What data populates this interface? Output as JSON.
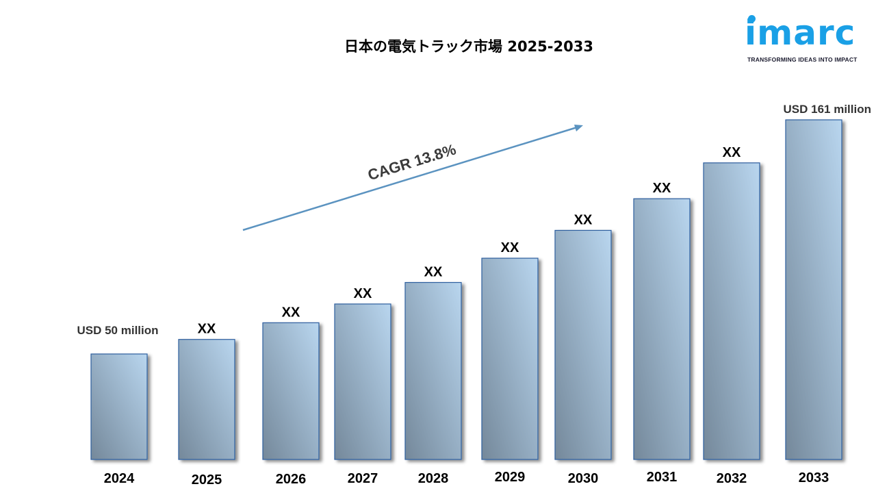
{
  "header": {
    "title": "日本の電気トラック市場 2025-2033"
  },
  "logo": {
    "wordmark": "imarc",
    "tagline": "TRANSFORMING IDEAS INTO IMPACT",
    "color": "#1aa0e6"
  },
  "chart_data": {
    "type": "bar",
    "title": "日本の電気トラック市場 2025-2033",
    "xlabel": "",
    "ylabel": "",
    "unit": "USD million",
    "categories": [
      "2024",
      "2025",
      "2026",
      "2027",
      "2028",
      "2029",
      "2030",
      "2031",
      "2032",
      "2033"
    ],
    "values": [
      50,
      56.9,
      64.8,
      73.7,
      83.9,
      95.4,
      108.6,
      123.6,
      140.6,
      161
    ],
    "data_labels": [
      "USD 50 million",
      "XX",
      "XX",
      "XX",
      "XX",
      "XX",
      "XX",
      "XX",
      "XX",
      "USD  161 million"
    ],
    "annotation": "CAGR  13.8%",
    "ylim": [
      0,
      161
    ],
    "grid": false,
    "legend": "none",
    "bar_color_light": "#b9d6ef",
    "bar_color_dark": "#74889a",
    "bar_border_color": "#2f5f9f",
    "arrow_color": "#5b93c0"
  }
}
